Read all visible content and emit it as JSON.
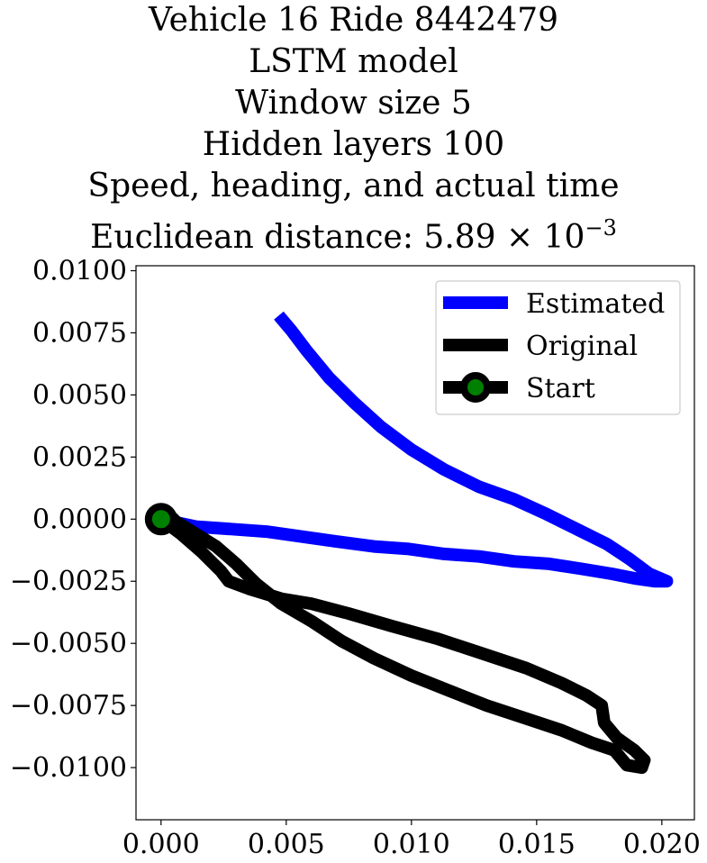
{
  "title_lines": [
    "Vehicle 16 Ride 8442479",
    "LSTM model",
    "Window size 5",
    "Hidden layers 100",
    "Speed, heading, and actual time"
  ],
  "distance_label": {
    "prefix": "Euclidean distance: 5.89",
    "times": "×",
    "base": "10",
    "exponent": "−3"
  },
  "chart_data": {
    "type": "line",
    "xlim": [
      -0.001,
      0.0213
    ],
    "ylim": [
      -0.0121,
      0.0102
    ],
    "x_ticks": [
      0.0,
      0.005,
      0.01,
      0.015,
      0.02
    ],
    "x_tick_labels": [
      "0.000",
      "0.005",
      "0.010",
      "0.015",
      "0.020"
    ],
    "y_ticks": [
      0.01,
      0.0075,
      0.005,
      0.0025,
      0.0,
      -0.0025,
      -0.005,
      -0.0075,
      -0.01
    ],
    "y_tick_labels": [
      "0.0100",
      "0.0075",
      "0.0050",
      "0.0025",
      "0.0000",
      "−0.0025",
      "−0.0050",
      "−0.0075",
      "−0.0100"
    ],
    "grid": false,
    "legend_position": "top-right",
    "series": [
      {
        "name": "Estimated",
        "color": "#0000ff",
        "points": [
          [
            0.0,
            0.0
          ],
          [
            0.0014,
            -0.0003
          ],
          [
            0.0028,
            -0.0004
          ],
          [
            0.0042,
            -0.0005
          ],
          [
            0.0056,
            -0.0007
          ],
          [
            0.007,
            -0.0009
          ],
          [
            0.0085,
            -0.0011
          ],
          [
            0.0099,
            -0.0012
          ],
          [
            0.0113,
            -0.0014
          ],
          [
            0.0127,
            -0.0015
          ],
          [
            0.0141,
            -0.0017
          ],
          [
            0.0155,
            -0.0018
          ],
          [
            0.0168,
            -0.002
          ],
          [
            0.018,
            -0.0022
          ],
          [
            0.019,
            -0.0024
          ],
          [
            0.0197,
            -0.0025
          ],
          [
            0.0202,
            -0.0025
          ],
          [
            0.0195,
            -0.0022
          ],
          [
            0.0187,
            -0.0016
          ],
          [
            0.0178,
            -0.001
          ],
          [
            0.0166,
            -0.0004
          ],
          [
            0.0154,
            0.0002
          ],
          [
            0.0141,
            0.0008
          ],
          [
            0.0127,
            0.0013
          ],
          [
            0.0113,
            0.002
          ],
          [
            0.01,
            0.0028
          ],
          [
            0.0088,
            0.0037
          ],
          [
            0.0077,
            0.0047
          ],
          [
            0.0067,
            0.0057
          ],
          [
            0.0058,
            0.0068
          ],
          [
            0.0052,
            0.0076
          ],
          [
            0.0047,
            0.0082
          ]
        ]
      },
      {
        "name": "Original",
        "color": "#000000",
        "points": [
          [
            0.0,
            0.0
          ],
          [
            0.0008,
            -0.0006
          ],
          [
            0.0016,
            -0.0013
          ],
          [
            0.0024,
            -0.0021
          ],
          [
            0.0027,
            -0.0025
          ],
          [
            0.0035,
            -0.0028
          ],
          [
            0.0048,
            -0.0032
          ],
          [
            0.006,
            -0.0034
          ],
          [
            0.0075,
            -0.0038
          ],
          [
            0.0092,
            -0.0043
          ],
          [
            0.011,
            -0.0048
          ],
          [
            0.0128,
            -0.0054
          ],
          [
            0.0146,
            -0.006
          ],
          [
            0.016,
            -0.0066
          ],
          [
            0.017,
            -0.0071
          ],
          [
            0.0176,
            -0.0075
          ],
          [
            0.0177,
            -0.0082
          ],
          [
            0.0182,
            -0.0088
          ],
          [
            0.0189,
            -0.0093
          ],
          [
            0.0193,
            -0.0097
          ],
          [
            0.0192,
            -0.01
          ],
          [
            0.0186,
            -0.0099
          ],
          [
            0.0181,
            -0.0093
          ],
          [
            0.0172,
            -0.009
          ],
          [
            0.016,
            -0.0085
          ],
          [
            0.0145,
            -0.008
          ],
          [
            0.013,
            -0.0075
          ],
          [
            0.0115,
            -0.0069
          ],
          [
            0.01,
            -0.0063
          ],
          [
            0.0085,
            -0.0056
          ],
          [
            0.0072,
            -0.0049
          ],
          [
            0.006,
            -0.0041
          ],
          [
            0.0048,
            -0.0034
          ],
          [
            0.0038,
            -0.0026
          ],
          [
            0.003,
            -0.0018
          ],
          [
            0.0022,
            -0.0011
          ],
          [
            0.0014,
            -0.0006
          ],
          [
            0.0006,
            -0.0001
          ],
          [
            0.0003,
            0.0002
          ]
        ]
      }
    ],
    "start_marker": {
      "name": "Start",
      "x": 0.0,
      "y": 0.0,
      "edge_color": "#000000",
      "face_color": "#008000"
    }
  }
}
